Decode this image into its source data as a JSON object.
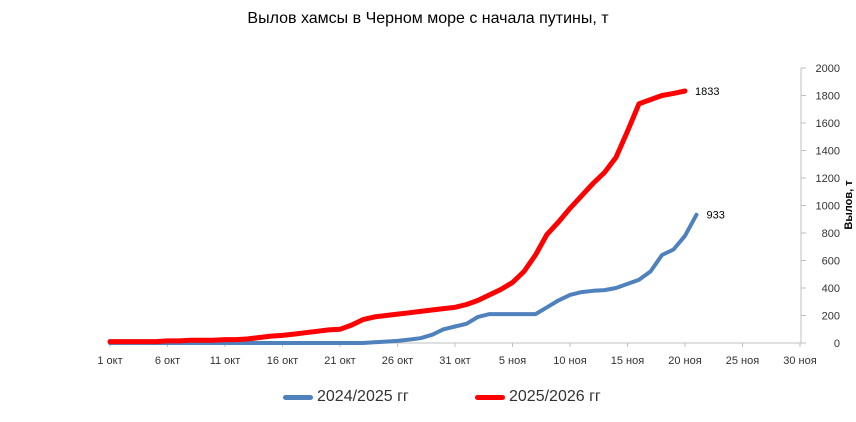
{
  "chart_data": {
    "type": "line",
    "title": "Вылов хамсы в Черном море с начала путины, т",
    "xlabel": "",
    "ylabel": "Вылов, т",
    "ylim": [
      0,
      2000
    ],
    "yticks": [
      "0",
      "200",
      "400",
      "600",
      "800",
      "1000",
      "1200",
      "1400",
      "1600",
      "1800",
      "2000"
    ],
    "xticks": [
      "1 окт",
      "6 окт",
      "11 окт",
      "16 окт",
      "21 окт",
      "26 окт",
      "31 окт",
      "5 ноя",
      "10 ноя",
      "15 ноя",
      "20 ноя",
      "25 ноя",
      "30 ноя"
    ],
    "x_range_days": [
      1,
      61
    ],
    "legend_position": "bottom",
    "grid": false,
    "series": [
      {
        "name": "2024/2025 гг",
        "color": "#4f81bd",
        "end_label": "933",
        "points": [
          [
            1,
            0
          ],
          [
            5,
            0
          ],
          [
            10,
            0
          ],
          [
            15,
            0
          ],
          [
            20,
            0
          ],
          [
            23,
            0
          ],
          [
            24,
            5
          ],
          [
            25,
            10
          ],
          [
            26,
            15
          ],
          [
            27,
            25
          ],
          [
            28,
            35
          ],
          [
            29,
            60
          ],
          [
            30,
            100
          ],
          [
            31,
            120
          ],
          [
            32,
            140
          ],
          [
            33,
            190
          ],
          [
            34,
            210
          ],
          [
            35,
            210
          ],
          [
            36,
            210
          ],
          [
            37,
            210
          ],
          [
            38,
            210
          ],
          [
            39,
            260
          ],
          [
            40,
            310
          ],
          [
            41,
            350
          ],
          [
            42,
            370
          ],
          [
            43,
            380
          ],
          [
            44,
            385
          ],
          [
            45,
            400
          ],
          [
            46,
            430
          ],
          [
            47,
            460
          ],
          [
            48,
            520
          ],
          [
            49,
            640
          ],
          [
            50,
            680
          ],
          [
            51,
            780
          ],
          [
            52,
            933
          ]
        ]
      },
      {
        "name": "2025/2026 гг",
        "color": "#ff0000",
        "end_label": "1833",
        "points": [
          [
            1,
            10
          ],
          [
            3,
            10
          ],
          [
            5,
            10
          ],
          [
            6,
            15
          ],
          [
            7,
            15
          ],
          [
            8,
            20
          ],
          [
            9,
            20
          ],
          [
            10,
            20
          ],
          [
            11,
            25
          ],
          [
            12,
            25
          ],
          [
            13,
            30
          ],
          [
            14,
            40
          ],
          [
            15,
            50
          ],
          [
            16,
            55
          ],
          [
            17,
            65
          ],
          [
            18,
            75
          ],
          [
            19,
            85
          ],
          [
            20,
            95
          ],
          [
            21,
            100
          ],
          [
            22,
            130
          ],
          [
            23,
            170
          ],
          [
            24,
            190
          ],
          [
            25,
            200
          ],
          [
            26,
            210
          ],
          [
            27,
            220
          ],
          [
            28,
            230
          ],
          [
            29,
            240
          ],
          [
            30,
            250
          ],
          [
            31,
            260
          ],
          [
            32,
            280
          ],
          [
            33,
            310
          ],
          [
            34,
            350
          ],
          [
            35,
            390
          ],
          [
            36,
            440
          ],
          [
            37,
            520
          ],
          [
            38,
            640
          ],
          [
            39,
            790
          ],
          [
            40,
            880
          ],
          [
            41,
            980
          ],
          [
            42,
            1070
          ],
          [
            43,
            1160
          ],
          [
            44,
            1240
          ],
          [
            45,
            1350
          ],
          [
            46,
            1540
          ],
          [
            47,
            1740
          ],
          [
            48,
            1770
          ],
          [
            49,
            1800
          ],
          [
            50,
            1815
          ],
          [
            51,
            1833
          ]
        ]
      }
    ]
  }
}
